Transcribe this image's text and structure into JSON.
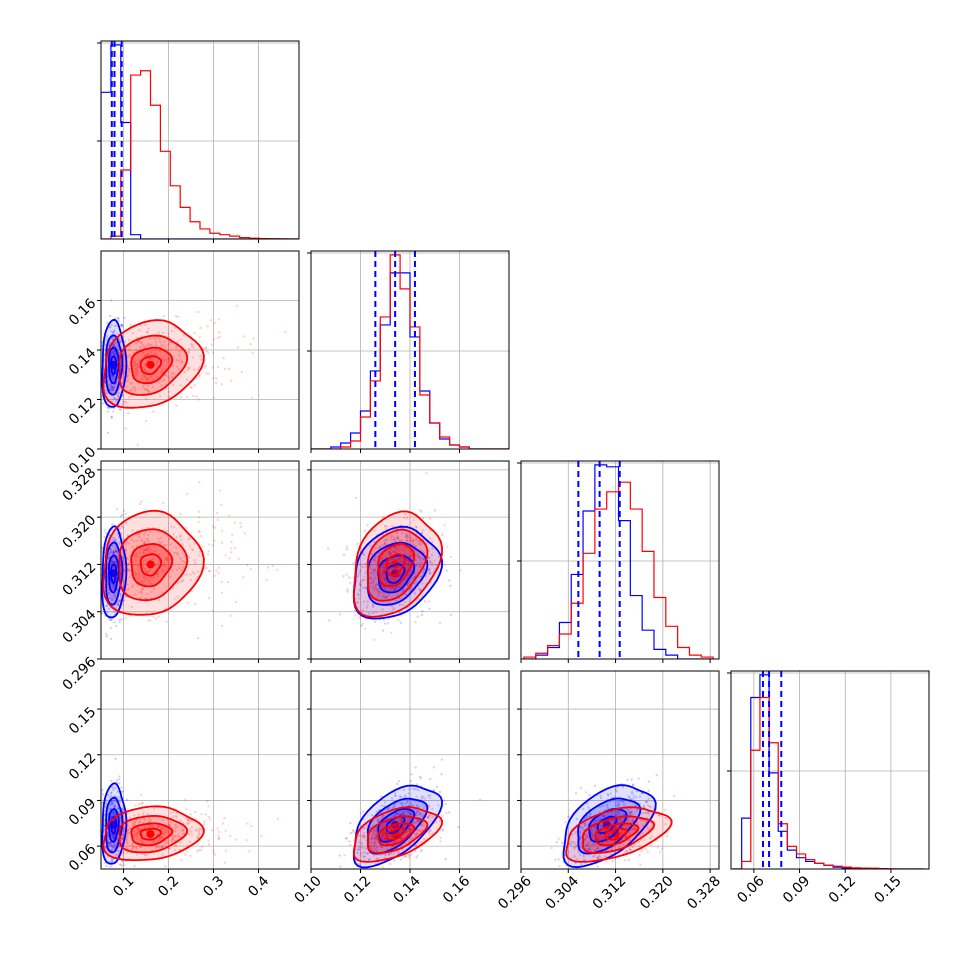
{
  "chart_data": {
    "type": "corner",
    "grid": true,
    "series": [
      {
        "color": "#0000ff"
      },
      {
        "color": "#ff0000"
      }
    ],
    "parameters": [
      {
        "range": [
          0.05,
          0.49
        ],
        "ticks": [
          0.1,
          0.2,
          0.3,
          0.4
        ],
        "tick_labels": [
          "0.1",
          "0.2",
          "0.3",
          "0.4"
        ]
      },
      {
        "range": [
          0.1,
          0.18
        ],
        "ticks": [
          0.1,
          0.12,
          0.14,
          0.16
        ],
        "tick_labels": [
          "0.10",
          "0.12",
          "0.14",
          "0.16"
        ]
      },
      {
        "range": [
          0.296,
          0.3295
        ],
        "ticks": [
          0.296,
          0.304,
          0.312,
          0.32,
          0.328
        ],
        "tick_labels": [
          "0.296",
          "0.304",
          "0.312",
          "0.320",
          "0.328"
        ]
      },
      {
        "range": [
          0.045,
          0.175
        ],
        "ticks": [
          0.06,
          0.09,
          0.12,
          0.15
        ],
        "tick_labels": [
          "0.06",
          "0.09",
          "0.12",
          "0.15"
        ]
      }
    ],
    "histograms": [
      {
        "param": 0,
        "bins": [
          0.05,
          0.072,
          0.094,
          0.116,
          0.138,
          0.16,
          0.182,
          0.204,
          0.226,
          0.248,
          0.27,
          0.292,
          0.314,
          0.336,
          0.358,
          0.38,
          0.402,
          0.424,
          0.446,
          0.468,
          0.49
        ],
        "series": [
          {
            "color": "#0000ff",
            "density": [
              1.02,
              1.35,
              0.81,
              0.03,
              0,
              0,
              0,
              0,
              0,
              0,
              0,
              0,
              0,
              0,
              0,
              0,
              0,
              0,
              0,
              0
            ]
          },
          {
            "color": "#ff0000",
            "density": [
              0,
              0.02,
              0.48,
              1.14,
              1.17,
              0.93,
              0.61,
              0.37,
              0.22,
              0.12,
              0.07,
              0.04,
              0.03,
              0.02,
              0.01,
              0.005,
              0.003,
              0.002,
              0.001,
              0
            ]
          }
        ],
        "quantiles": [
          0.074,
          0.08,
          0.096
        ]
      },
      {
        "param": 1,
        "bins": [
          0.1,
          0.104,
          0.108,
          0.112,
          0.116,
          0.12,
          0.124,
          0.128,
          0.132,
          0.136,
          0.14,
          0.144,
          0.148,
          0.152,
          0.156,
          0.16,
          0.164,
          0.168,
          0.172,
          0.176,
          0.18
        ],
        "series": [
          {
            "color": "#0000ff",
            "density": [
              0,
              0,
              0.01,
              0.03,
              0.08,
              0.19,
              0.39,
              0.62,
              0.88,
              0.88,
              0.56,
              0.29,
              0.13,
              0.05,
              0.02,
              0.01,
              0,
              0,
              0,
              0
            ]
          },
          {
            "color": "#ff0000",
            "density": [
              0,
              0,
              0,
              0.01,
              0.04,
              0.16,
              0.34,
              0.66,
              0.97,
              0.8,
              0.61,
              0.27,
              0.13,
              0.06,
              0.02,
              0.01,
              0,
              0,
              0,
              0
            ]
          }
        ],
        "quantiles": [
          0.126,
          0.134,
          0.142
        ]
      },
      {
        "param": 2,
        "bins": [
          0.2965,
          0.2985,
          0.3005,
          0.3025,
          0.3045,
          0.3065,
          0.3085,
          0.3105,
          0.3125,
          0.3145,
          0.3165,
          0.3185,
          0.3205,
          0.3225,
          0.3245,
          0.3265,
          0.3285
        ],
        "series": [
          {
            "color": "#0000ff",
            "density": [
              0,
              0.02,
              0.06,
              0.19,
              0.44,
              0.77,
              1.01,
              1.0,
              0.72,
              0.33,
              0.15,
              0.05,
              0.02,
              0,
              0,
              0
            ]
          },
          {
            "color": "#ff0000",
            "density": [
              0.01,
              0.03,
              0.07,
              0.13,
              0.29,
              0.55,
              0.78,
              0.87,
              0.92,
              0.78,
              0.56,
              0.32,
              0.17,
              0.06,
              0.02,
              0.01
            ]
          }
        ],
        "quantiles": [
          0.3057,
          0.3093,
          0.3127
        ]
      },
      {
        "param": 3,
        "bins": [
          0.046,
          0.052,
          0.058,
          0.064,
          0.07,
          0.076,
          0.082,
          0.088,
          0.094,
          0.1,
          0.106,
          0.112,
          0.118,
          0.124,
          0.13,
          0.136,
          0.142,
          0.148,
          0.154,
          0.16,
          0.166,
          0.172
        ],
        "series": [
          {
            "color": "#0000ff",
            "density": [
              0,
              0.27,
              0.91,
              1.03,
              0.51,
              0.2,
              0.1,
              0.06,
              0.04,
              0.03,
              0.02,
              0.01,
              0.005,
              0.003,
              0.002,
              0,
              0,
              0,
              0,
              0,
              0
            ]
          },
          {
            "color": "#ff0000",
            "density": [
              0,
              0.04,
              0.63,
              0.91,
              0.67,
              0.24,
              0.12,
              0.08,
              0.05,
              0.03,
              0.02,
              0.015,
              0.01,
              0.006,
              0.005,
              0.004,
              0.002,
              0.001,
              0,
              0,
              0
            ]
          }
        ],
        "quantiles": [
          0.066,
          0.07,
          0.078
        ]
      }
    ],
    "pairs": [
      {
        "x_param": 0,
        "y_param": 1,
        "series": [
          {
            "color": "#0000ff",
            "mean": [
              0.078,
              0.134
            ],
            "sd": [
              0.012,
              0.008
            ],
            "rho": 0.05
          },
          {
            "color": "#ff0000",
            "mean": [
              0.16,
              0.134
            ],
            "sd": [
              0.05,
              0.008
            ],
            "rho": 0.2
          }
        ]
      },
      {
        "x_param": 0,
        "y_param": 2,
        "series": [
          {
            "color": "#0000ff",
            "mean": [
              0.078,
              0.3105
            ],
            "sd": [
              0.012,
              0.0035
            ],
            "rho": 0.1
          },
          {
            "color": "#ff0000",
            "mean": [
              0.16,
              0.312
            ],
            "sd": [
              0.05,
              0.004
            ],
            "rho": 0.1
          }
        ]
      },
      {
        "x_param": 1,
        "y_param": 2,
        "series": [
          {
            "color": "#0000ff",
            "mean": [
              0.134,
              0.3105
            ],
            "sd": [
              0.008,
              0.0035
            ],
            "rho": 0.25
          },
          {
            "color": "#ff0000",
            "mean": [
              0.134,
              0.312
            ],
            "sd": [
              0.008,
              0.004
            ],
            "rho": 0.3
          }
        ]
      },
      {
        "x_param": 0,
        "y_param": 3,
        "series": [
          {
            "color": "#0000ff",
            "mean": [
              0.078,
              0.074
            ],
            "sd": [
              0.012,
              0.012
            ],
            "rho": 0.1
          },
          {
            "color": "#ff0000",
            "mean": [
              0.16,
              0.068
            ],
            "sd": [
              0.05,
              0.008
            ],
            "rho": 0.15
          }
        ]
      },
      {
        "x_param": 1,
        "y_param": 3,
        "series": [
          {
            "color": "#0000ff",
            "mean": [
              0.134,
              0.074
            ],
            "sd": [
              0.008,
              0.012
            ],
            "rho": 0.55
          },
          {
            "color": "#ff0000",
            "mean": [
              0.134,
              0.068
            ],
            "sd": [
              0.008,
              0.008
            ],
            "rho": 0.45
          }
        ]
      },
      {
        "x_param": 2,
        "y_param": 3,
        "series": [
          {
            "color": "#0000ff",
            "mean": [
              0.3105,
              0.074
            ],
            "sd": [
              0.0035,
              0.012
            ],
            "rho": 0.5
          },
          {
            "color": "#ff0000",
            "mean": [
              0.312,
              0.068
            ],
            "sd": [
              0.004,
              0.008
            ],
            "rho": 0.45
          }
        ]
      }
    ]
  }
}
